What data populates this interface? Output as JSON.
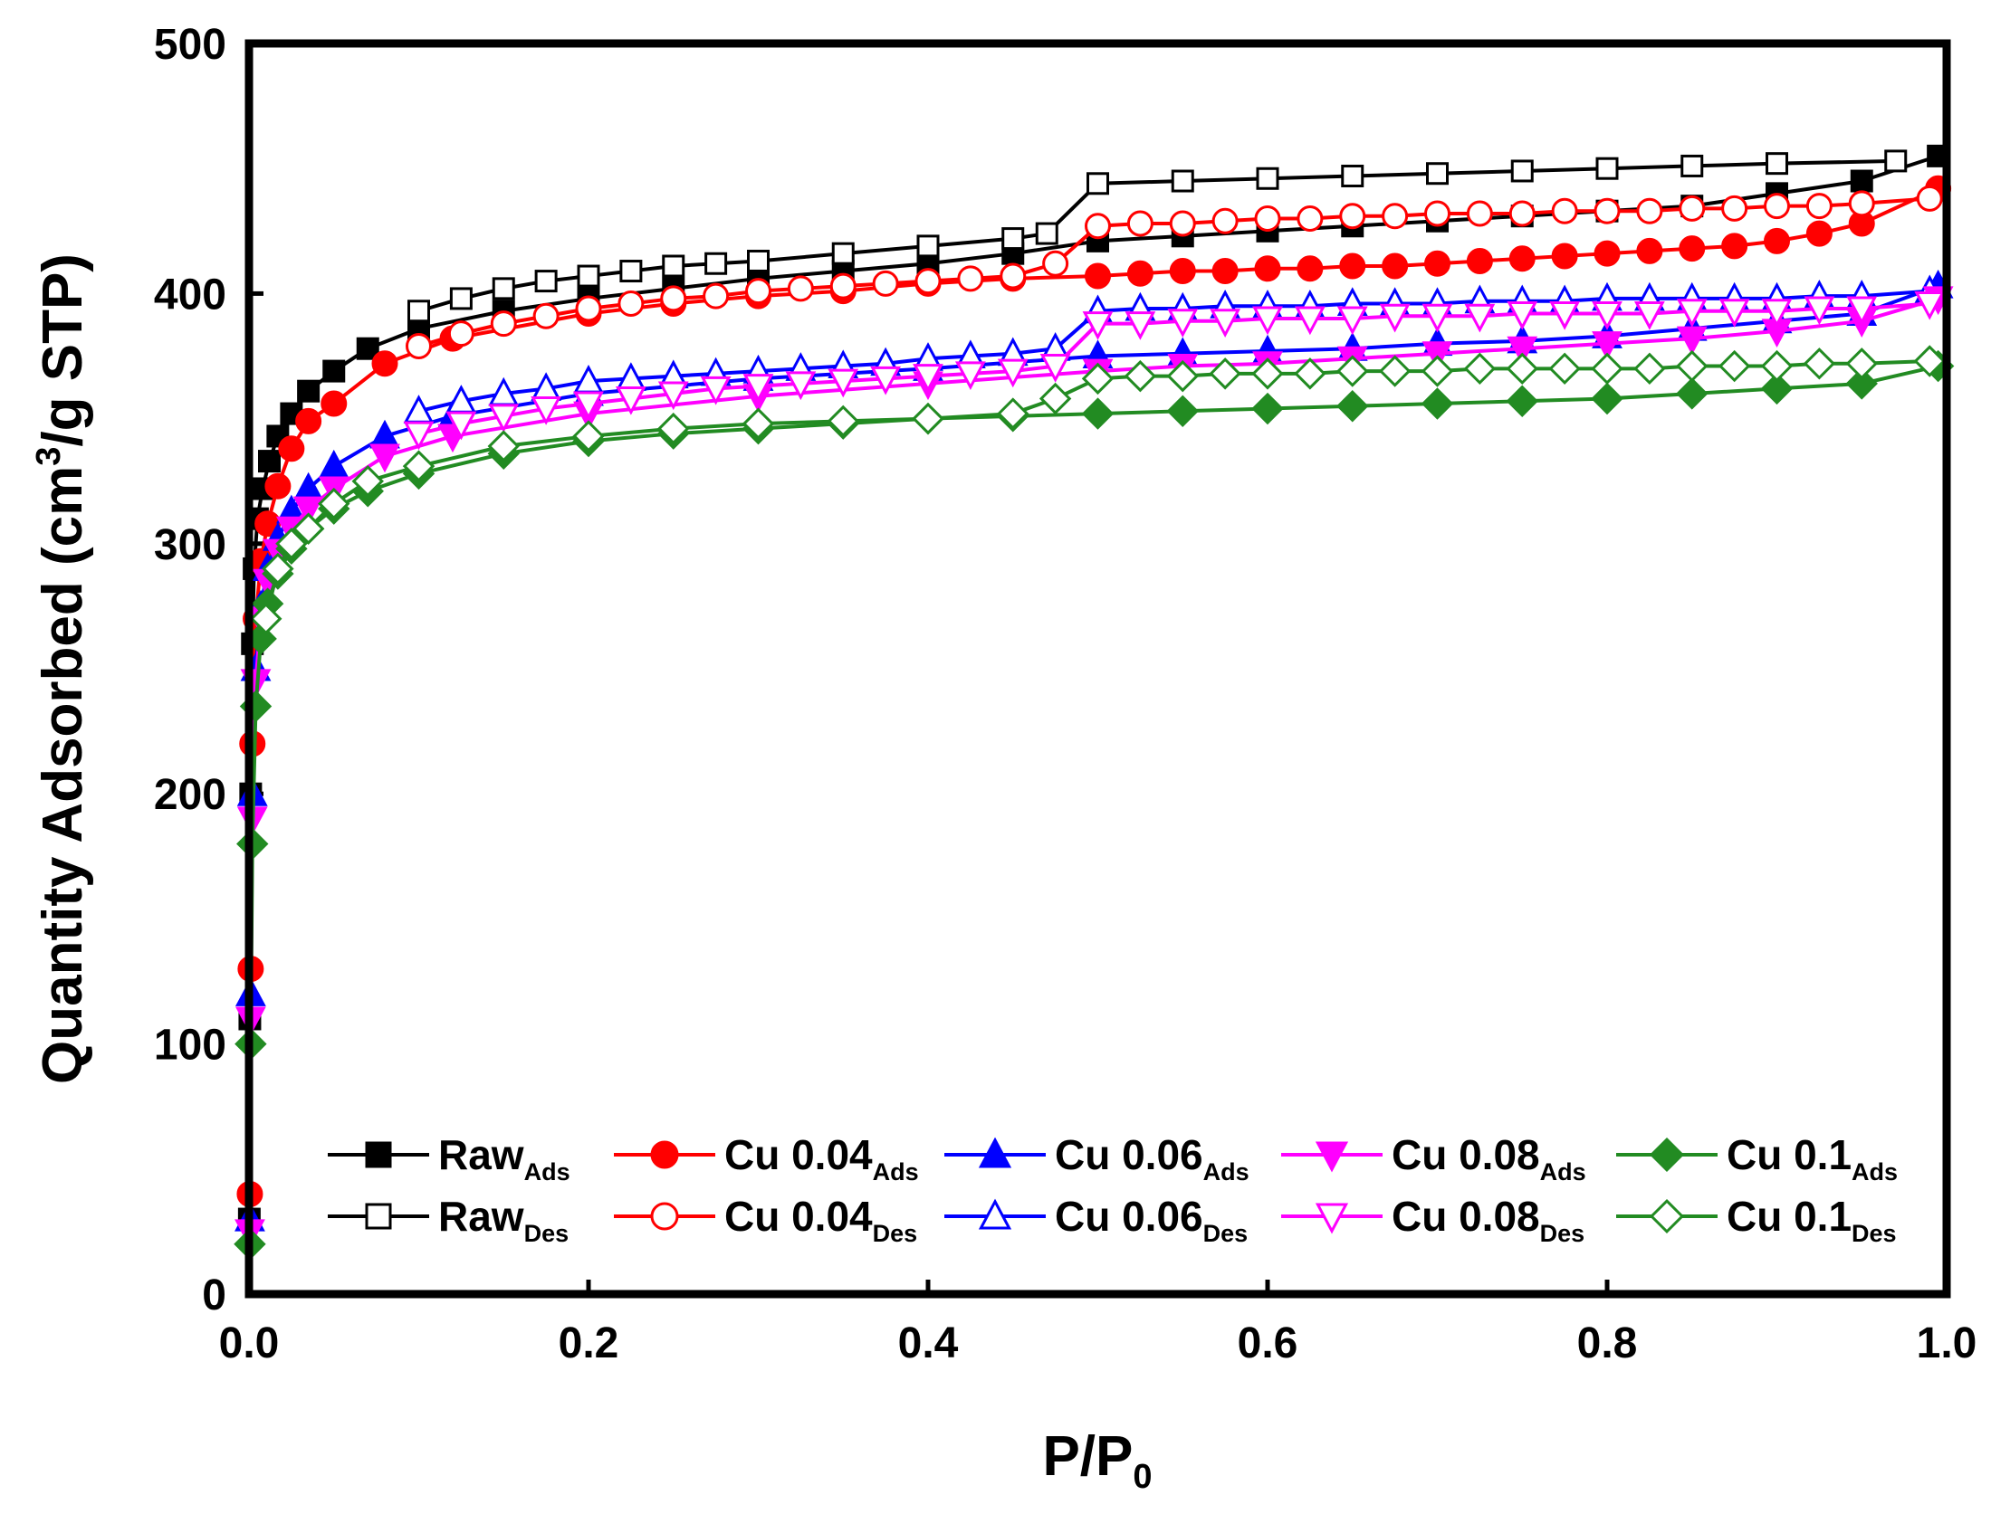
{
  "chart_data": {
    "type": "line",
    "title": "",
    "xlabel": {
      "main": "P/P",
      "sub": "0"
    },
    "ylabel": {
      "before": "Quantity Adsorbed (cm",
      "sup": "3",
      "after": "/g STP)"
    },
    "xlim": [
      0.0,
      1.0
    ],
    "ylim": [
      0,
      500
    ],
    "xticks": [
      "0.0",
      "0.2",
      "0.4",
      "0.6",
      "0.8",
      "1.0"
    ],
    "yticks": [
      "0",
      "100",
      "200",
      "300",
      "400",
      "500"
    ],
    "grid": false,
    "legend_position": "bottom, 5 columns x 2 rows",
    "series": [
      {
        "name": "Raw",
        "sub": "Ads",
        "color": "#000000",
        "marker": "square",
        "filled": true,
        "x": [
          0.0002,
          0.0005,
          0.001,
          0.002,
          0.003,
          0.005,
          0.008,
          0.012,
          0.017,
          0.025,
          0.035,
          0.05,
          0.07,
          0.1,
          0.15,
          0.2,
          0.25,
          0.3,
          0.35,
          0.4,
          0.45,
          0.5,
          0.55,
          0.6,
          0.65,
          0.7,
          0.75,
          0.8,
          0.85,
          0.9,
          0.95,
          0.995
        ],
        "y": [
          30,
          110,
          200,
          260,
          290,
          310,
          322,
          333,
          343,
          352,
          361,
          369,
          378,
          386,
          393,
          398,
          402,
          406,
          409,
          412,
          416,
          421,
          423,
          425,
          427,
          429,
          431,
          433,
          435,
          440,
          445,
          455
        ]
      },
      {
        "name": "Raw",
        "sub": "Des",
        "color": "#000000",
        "marker": "square",
        "filled": false,
        "x": [
          0.97,
          0.9,
          0.85,
          0.8,
          0.75,
          0.7,
          0.65,
          0.6,
          0.55,
          0.5,
          0.47,
          0.45,
          0.4,
          0.35,
          0.3,
          0.275,
          0.25,
          0.225,
          0.2,
          0.175,
          0.15,
          0.125,
          0.1
        ],
        "y": [
          453,
          452,
          451,
          450,
          449,
          448,
          447,
          446,
          445,
          444,
          424,
          422,
          419,
          416,
          413,
          412,
          411,
          409,
          407,
          405,
          402,
          398,
          393
        ]
      },
      {
        "name": "Cu 0.04",
        "sub": "Ads",
        "color": "#ff0000",
        "marker": "circle",
        "filled": true,
        "x": [
          0.0005,
          0.001,
          0.002,
          0.004,
          0.007,
          0.011,
          0.017,
          0.025,
          0.035,
          0.05,
          0.08,
          0.12,
          0.2,
          0.25,
          0.3,
          0.35,
          0.4,
          0.45,
          0.5,
          0.525,
          0.55,
          0.575,
          0.6,
          0.625,
          0.65,
          0.675,
          0.7,
          0.725,
          0.75,
          0.775,
          0.8,
          0.825,
          0.85,
          0.875,
          0.9,
          0.925,
          0.95,
          0.995
        ],
        "y": [
          40,
          130,
          220,
          270,
          293,
          308,
          323,
          338,
          349,
          356,
          372,
          382,
          392,
          396,
          399,
          401,
          404,
          406,
          407,
          408,
          409,
          409,
          410,
          410,
          411,
          411,
          412,
          413,
          414,
          415,
          416,
          417,
          418,
          419,
          421,
          424,
          428,
          442
        ]
      },
      {
        "name": "Cu 0.04",
        "sub": "Des",
        "color": "#ff0000",
        "marker": "circle",
        "filled": false,
        "x": [
          0.99,
          0.95,
          0.925,
          0.9,
          0.875,
          0.85,
          0.825,
          0.8,
          0.775,
          0.75,
          0.725,
          0.7,
          0.675,
          0.65,
          0.625,
          0.6,
          0.575,
          0.55,
          0.525,
          0.5,
          0.475,
          0.45,
          0.425,
          0.4,
          0.375,
          0.35,
          0.325,
          0.3,
          0.275,
          0.25,
          0.225,
          0.2,
          0.175,
          0.15,
          0.125,
          0.1
        ],
        "y": [
          438,
          436,
          435,
          435,
          434,
          434,
          433,
          433,
          433,
          432,
          432,
          432,
          431,
          431,
          430,
          430,
          429,
          428,
          428,
          427,
          412,
          407,
          406,
          405,
          404,
          403,
          402,
          401,
          399,
          398,
          396,
          394,
          391,
          388,
          384,
          379
        ]
      },
      {
        "name": "Cu 0.06",
        "sub": "Ads",
        "color": "#0000ff",
        "marker": "triangle-up",
        "filled": true,
        "x": [
          0.0005,
          0.001,
          0.002,
          0.004,
          0.007,
          0.011,
          0.017,
          0.025,
          0.035,
          0.05,
          0.08,
          0.12,
          0.2,
          0.3,
          0.4,
          0.5,
          0.55,
          0.6,
          0.65,
          0.7,
          0.75,
          0.8,
          0.85,
          0.9,
          0.95,
          0.995
        ],
        "y": [
          30,
          120,
          200,
          250,
          275,
          290,
          302,
          313,
          322,
          331,
          343,
          351,
          360,
          366,
          370,
          375,
          376,
          377,
          378,
          380,
          381,
          383,
          386,
          389,
          392,
          403
        ]
      },
      {
        "name": "Cu 0.06",
        "sub": "Des",
        "color": "#0000ff",
        "marker": "triangle-up",
        "filled": false,
        "x": [
          0.99,
          0.95,
          0.925,
          0.9,
          0.875,
          0.85,
          0.825,
          0.8,
          0.775,
          0.75,
          0.725,
          0.7,
          0.675,
          0.65,
          0.625,
          0.6,
          0.575,
          0.55,
          0.525,
          0.5,
          0.475,
          0.45,
          0.425,
          0.4,
          0.375,
          0.35,
          0.325,
          0.3,
          0.275,
          0.25,
          0.225,
          0.2,
          0.175,
          0.15,
          0.125,
          0.1
        ],
        "y": [
          401,
          399,
          399,
          398,
          398,
          398,
          398,
          398,
          397,
          397,
          397,
          396,
          396,
          396,
          395,
          395,
          395,
          394,
          394,
          393,
          378,
          376,
          375,
          374,
          372,
          371,
          370,
          369,
          368,
          367,
          366,
          365,
          362,
          360,
          357,
          353
        ]
      },
      {
        "name": "Cu 0.08",
        "sub": "Ads",
        "color": "#ff00ff",
        "marker": "triangle-down",
        "filled": true,
        "x": [
          0.0005,
          0.001,
          0.002,
          0.004,
          0.007,
          0.011,
          0.017,
          0.025,
          0.035,
          0.05,
          0.08,
          0.12,
          0.2,
          0.3,
          0.4,
          0.5,
          0.55,
          0.6,
          0.65,
          0.7,
          0.75,
          0.8,
          0.85,
          0.9,
          0.95,
          0.995
        ],
        "y": [
          25,
          110,
          190,
          245,
          270,
          285,
          297,
          306,
          314,
          322,
          335,
          343,
          352,
          359,
          364,
          369,
          371,
          372,
          374,
          376,
          378,
          380,
          382,
          385,
          389,
          398
        ]
      },
      {
        "name": "Cu 0.08",
        "sub": "Des",
        "color": "#ff00ff",
        "marker": "triangle-down",
        "filled": false,
        "x": [
          0.99,
          0.95,
          0.925,
          0.9,
          0.875,
          0.85,
          0.825,
          0.8,
          0.775,
          0.75,
          0.725,
          0.7,
          0.675,
          0.65,
          0.625,
          0.6,
          0.575,
          0.55,
          0.525,
          0.5,
          0.475,
          0.45,
          0.425,
          0.4,
          0.375,
          0.35,
          0.325,
          0.3,
          0.275,
          0.25,
          0.225,
          0.2,
          0.175,
          0.15,
          0.125,
          0.1
        ],
        "y": [
          396,
          394,
          394,
          393,
          393,
          393,
          392,
          392,
          392,
          392,
          391,
          391,
          391,
          390,
          390,
          390,
          389,
          389,
          388,
          388,
          371,
          369,
          368,
          367,
          366,
          365,
          364,
          363,
          362,
          360,
          358,
          356,
          354,
          351,
          348,
          344
        ]
      },
      {
        "name": "Cu 0.1",
        "sub": "Ads",
        "color": "#228b22",
        "marker": "diamond",
        "filled": true,
        "x": [
          0.0005,
          0.001,
          0.002,
          0.004,
          0.007,
          0.011,
          0.017,
          0.025,
          0.035,
          0.05,
          0.07,
          0.1,
          0.15,
          0.2,
          0.25,
          0.3,
          0.35,
          0.4,
          0.45,
          0.5,
          0.55,
          0.6,
          0.65,
          0.7,
          0.75,
          0.8,
          0.85,
          0.9,
          0.95,
          0.995
        ],
        "y": [
          20,
          100,
          180,
          235,
          262,
          276,
          288,
          298,
          306,
          314,
          321,
          328,
          336,
          341,
          344,
          346,
          348,
          350,
          351,
          352,
          353,
          354,
          355,
          356,
          357,
          358,
          360,
          362,
          364,
          371
        ]
      },
      {
        "name": "Cu 0.1",
        "sub": "Des",
        "color": "#228b22",
        "marker": "diamond",
        "filled": false,
        "x": [
          0.99,
          0.95,
          0.925,
          0.9,
          0.875,
          0.85,
          0.825,
          0.8,
          0.775,
          0.75,
          0.725,
          0.7,
          0.675,
          0.65,
          0.625,
          0.6,
          0.575,
          0.55,
          0.525,
          0.5,
          0.475,
          0.45,
          0.4,
          0.35,
          0.3,
          0.25,
          0.2,
          0.15,
          0.1,
          0.07,
          0.05,
          0.035,
          0.025,
          0.017,
          0.01
        ],
        "y": [
          373,
          372,
          372,
          371,
          371,
          371,
          370,
          370,
          370,
          370,
          370,
          369,
          369,
          369,
          368,
          368,
          368,
          367,
          367,
          366,
          358,
          352,
          350,
          349,
          348,
          346,
          343,
          339,
          331,
          325,
          316,
          306,
          300,
          290,
          270
        ]
      }
    ]
  }
}
